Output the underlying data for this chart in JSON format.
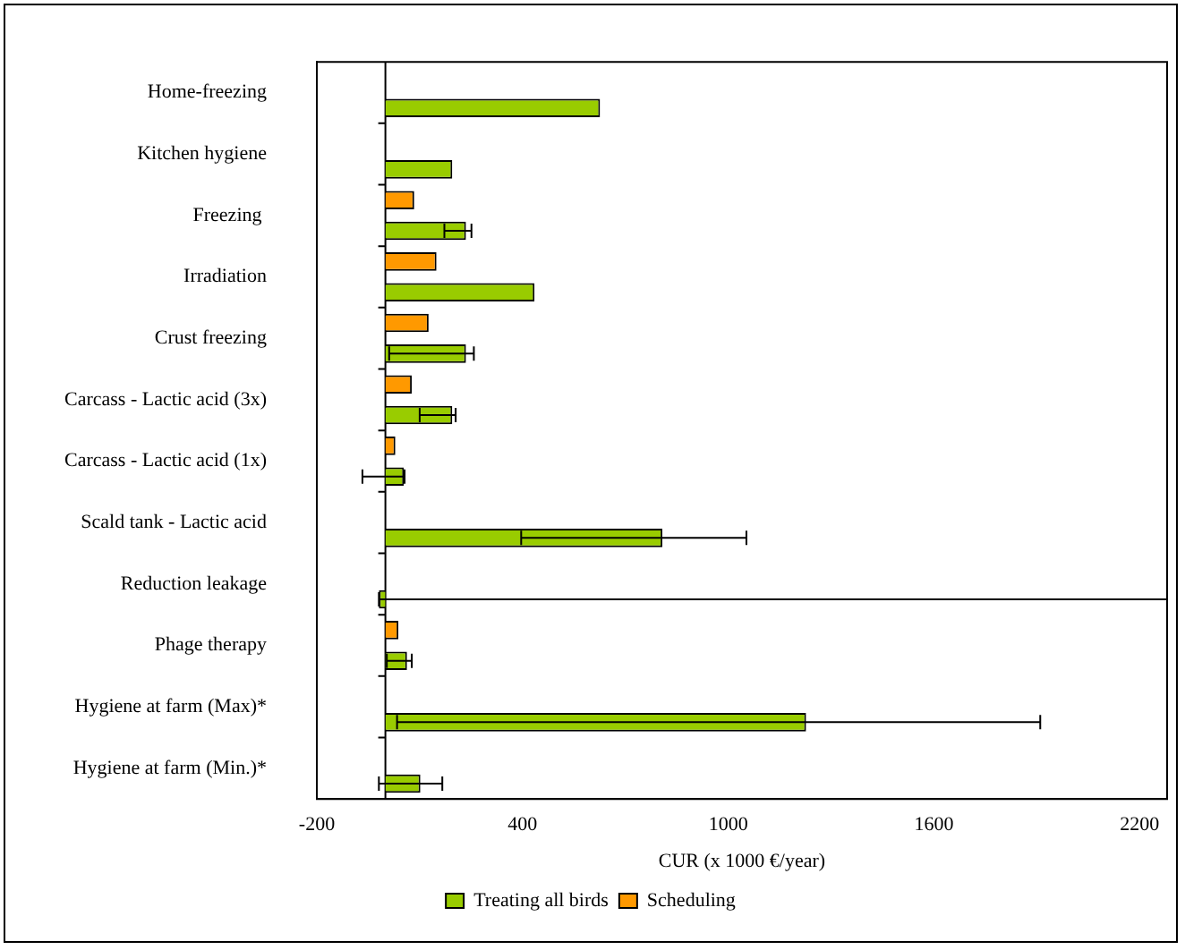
{
  "chart_data": {
    "type": "bar",
    "orientation": "horizontal",
    "xlabel": "CUR (x 1000 €/year)",
    "categories": [
      "Home-freezing",
      "Kitchen hygiene",
      "Freezing ",
      "Irradiation",
      "Crust freezing",
      "Carcass - Lactic acid (3x)",
      "Carcass - Lactic acid (1x)",
      "Scald tank - Lactic acid",
      "Reduction leakage",
      "Phage therapy",
      "Hygiene at farm (Max)*",
      "Hygiene at farm (Min.)*"
    ],
    "series": [
      {
        "name": "Treating all birds",
        "color": "#99cc00",
        "values": [
          626,
          195,
          235,
          435,
          235,
          195,
          54,
          808,
          -19,
          63,
          1227,
          102
        ],
        "errors": [
          null,
          null,
          [
            172,
            251
          ],
          null,
          [
            11,
            258
          ],
          [
            100,
            205
          ],
          [
            -67,
            56
          ],
          [
            396,
            1053
          ],
          [
            -19,
            2280
          ],
          [
            4,
            77
          ],
          [
            34,
            1910
          ],
          [
            -19,
            166
          ]
        ]
      },
      {
        "name": "Scheduling",
        "color": "#ff9900",
        "values": [
          null,
          null,
          84,
          149,
          126,
          77,
          29,
          null,
          null,
          38,
          null,
          null
        ]
      }
    ],
    "xlim": [
      -200,
      2280
    ],
    "xticks": [
      -200,
      400,
      1000,
      1600,
      2200
    ],
    "grid": false,
    "legend": "bottom",
    "ref_lines": [
      {
        "axis": "x",
        "value": 0
      }
    ]
  }
}
